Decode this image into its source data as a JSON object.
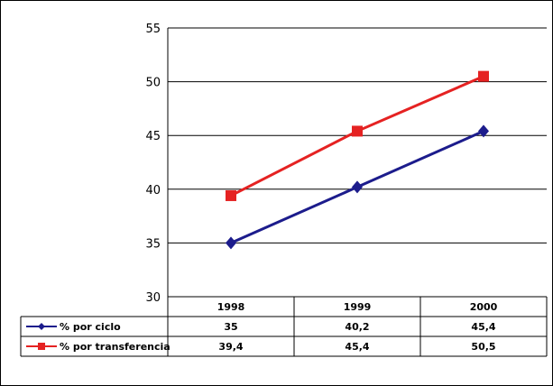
{
  "chart_data": {
    "type": "line",
    "categories": [
      "1998",
      "1999",
      "2000"
    ],
    "series": [
      {
        "name": "% por ciclo",
        "values": [
          35,
          40.2,
          45.4
        ],
        "value_labels": [
          "35",
          "40,2",
          "45,4"
        ],
        "color": "#1c1c8c",
        "marker": "diamond"
      },
      {
        "name": "% por transferencia",
        "values": [
          39.4,
          45.4,
          50.5
        ],
        "value_labels": [
          "39,4",
          "45,4",
          "50,5"
        ],
        "color": "#e52222",
        "marker": "square"
      }
    ],
    "y_ticks": [
      30,
      35,
      40,
      45,
      50,
      55
    ],
    "ylim": [
      30,
      55
    ],
    "grid": true,
    "legend": "data-table",
    "title": "",
    "xlabel": "",
    "ylabel": ""
  }
}
